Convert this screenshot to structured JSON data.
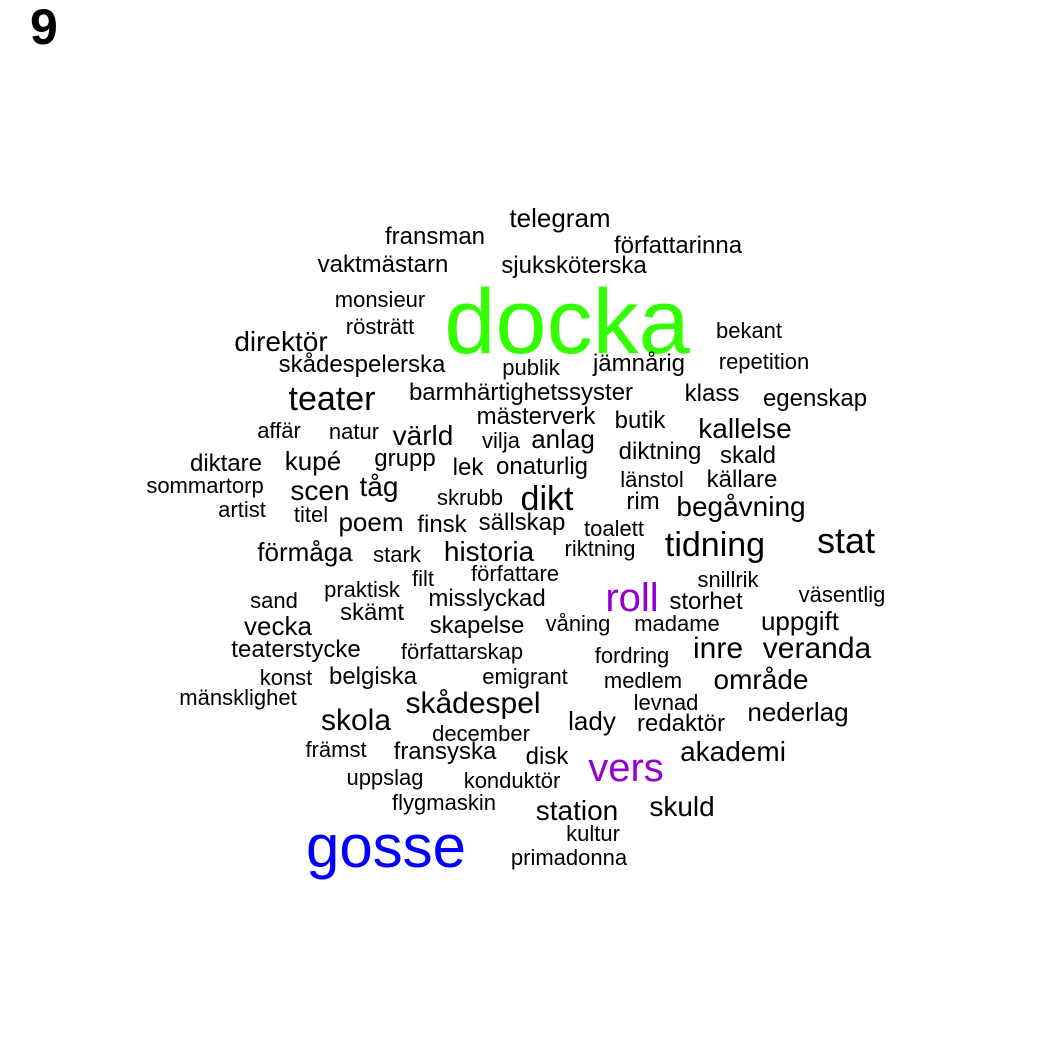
{
  "panel_label": "9",
  "highlight_colors": {
    "docka": "#33ff00",
    "gosse": "#0000ff",
    "roll": "#9400d3",
    "vers": "#9400d3"
  },
  "words": [
    {
      "text": "docka"
    },
    {
      "text": "gosse"
    },
    {
      "text": "vers"
    },
    {
      "text": "roll"
    },
    {
      "text": "telegram"
    },
    {
      "text": "fransman"
    },
    {
      "text": "författarinna"
    },
    {
      "text": "vaktmästarn"
    },
    {
      "text": "sjuksköterska"
    },
    {
      "text": "monsieur"
    },
    {
      "text": "rösträtt"
    },
    {
      "text": "bekant"
    },
    {
      "text": "direktör"
    },
    {
      "text": "skådespelerska"
    },
    {
      "text": "publik"
    },
    {
      "text": "jämnårig"
    },
    {
      "text": "repetition"
    },
    {
      "text": "teater"
    },
    {
      "text": "barmhärtighetssyster"
    },
    {
      "text": "klass"
    },
    {
      "text": "egenskap"
    },
    {
      "text": "mästerverk"
    },
    {
      "text": "butik"
    },
    {
      "text": "affär"
    },
    {
      "text": "natur"
    },
    {
      "text": "värld"
    },
    {
      "text": "vilja"
    },
    {
      "text": "anlag"
    },
    {
      "text": "kallelse"
    },
    {
      "text": "diktning"
    },
    {
      "text": "skald"
    },
    {
      "text": "diktare"
    },
    {
      "text": "kupé"
    },
    {
      "text": "grupp"
    },
    {
      "text": "lek"
    },
    {
      "text": "onaturlig"
    },
    {
      "text": "länstol"
    },
    {
      "text": "källare"
    },
    {
      "text": "sommartorp"
    },
    {
      "text": "scen"
    },
    {
      "text": "tåg"
    },
    {
      "text": "skrubb"
    },
    {
      "text": "dikt"
    },
    {
      "text": "rim"
    },
    {
      "text": "begåvning"
    },
    {
      "text": "artist"
    },
    {
      "text": "titel"
    },
    {
      "text": "poem"
    },
    {
      "text": "finsk"
    },
    {
      "text": "sällskap"
    },
    {
      "text": "toalett"
    },
    {
      "text": "förmåga"
    },
    {
      "text": "stark"
    },
    {
      "text": "historia"
    },
    {
      "text": "riktning"
    },
    {
      "text": "tidning"
    },
    {
      "text": "stat"
    },
    {
      "text": "filt"
    },
    {
      "text": "författare"
    },
    {
      "text": "snillrik"
    },
    {
      "text": "praktisk"
    },
    {
      "text": "sand"
    },
    {
      "text": "misslyckad"
    },
    {
      "text": "storhet"
    },
    {
      "text": "väsentlig"
    },
    {
      "text": "skämt"
    },
    {
      "text": "vecka"
    },
    {
      "text": "skapelse"
    },
    {
      "text": "våning"
    },
    {
      "text": "madame"
    },
    {
      "text": "uppgift"
    },
    {
      "text": "teaterstycke"
    },
    {
      "text": "författarskap"
    },
    {
      "text": "fordring"
    },
    {
      "text": "inre"
    },
    {
      "text": "veranda"
    },
    {
      "text": "konst"
    },
    {
      "text": "belgiska"
    },
    {
      "text": "emigrant"
    },
    {
      "text": "medlem"
    },
    {
      "text": "område"
    },
    {
      "text": "mänsklighet"
    },
    {
      "text": "skådespel"
    },
    {
      "text": "levnad"
    },
    {
      "text": "skola"
    },
    {
      "text": "lady"
    },
    {
      "text": "redaktör"
    },
    {
      "text": "nederlag"
    },
    {
      "text": "december"
    },
    {
      "text": "främst"
    },
    {
      "text": "fransyska"
    },
    {
      "text": "disk"
    },
    {
      "text": "akademi"
    },
    {
      "text": "uppslag"
    },
    {
      "text": "konduktör"
    },
    {
      "text": "flygmaskin"
    },
    {
      "text": "station"
    },
    {
      "text": "skuld"
    },
    {
      "text": "kultur"
    },
    {
      "text": "primadonna"
    }
  ]
}
